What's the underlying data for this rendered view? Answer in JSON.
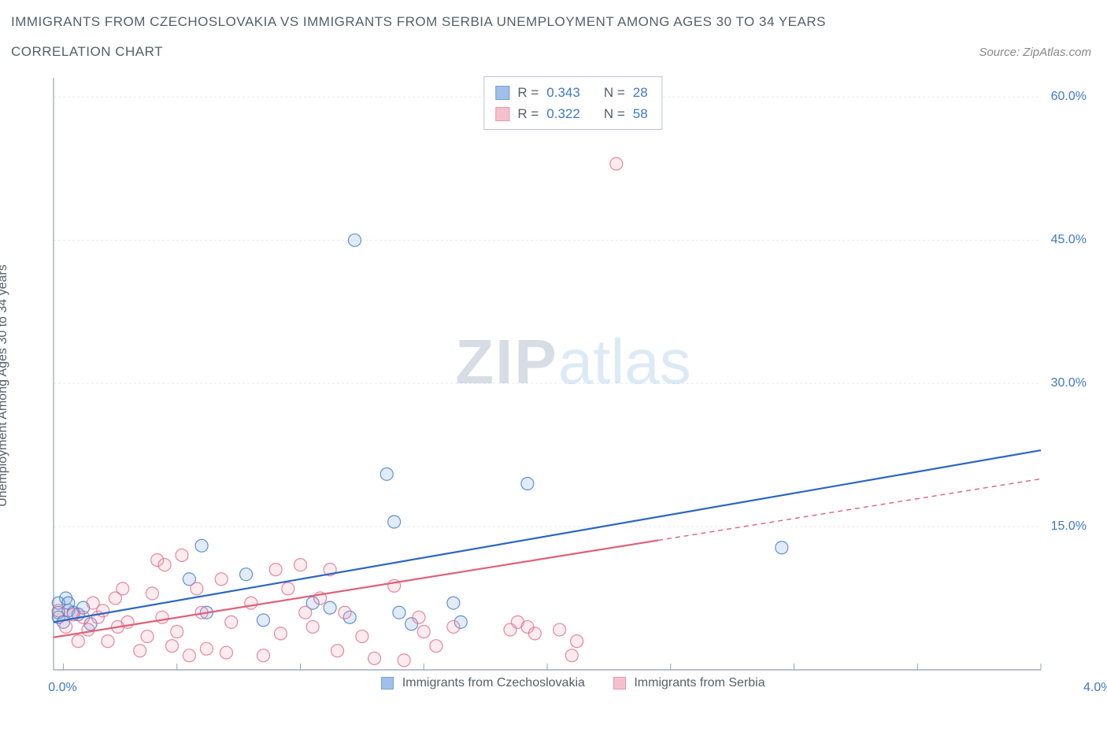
{
  "title": "IMMIGRANTS FROM CZECHOSLOVAKIA VS IMMIGRANTS FROM SERBIA UNEMPLOYMENT AMONG AGES 30 TO 34 YEARS",
  "subtitle": "CORRELATION CHART",
  "source": "Source: ZipAtlas.com",
  "y_axis_label": "Unemployment Among Ages 30 to 34 years",
  "watermark_a": "ZIP",
  "watermark_b": "atlas",
  "chart": {
    "type": "scatter",
    "xlim": [
      0.0,
      4.0
    ],
    "ylim": [
      0.0,
      62.0
    ],
    "x_tick_positions_pct": [
      1,
      12.5,
      25,
      37.5,
      50,
      62.5,
      75,
      87.5,
      100
    ],
    "x_tick_labels": {
      "0": "0.0%",
      "8": "4.0%"
    },
    "y_ticks": [
      15.0,
      30.0,
      45.0,
      60.0
    ],
    "y_tick_labels": [
      "15.0%",
      "30.0%",
      "45.0%",
      "60.0%"
    ],
    "background_color": "#ffffff",
    "grid_color": "#e5e9f0",
    "axis_color": "#96a2b4",
    "tick_label_color": "#4178c7",
    "marker_radius": 8,
    "marker_fill_opacity": 0.22,
    "marker_stroke_opacity": 0.8,
    "trend_line_width": 2.2,
    "series": [
      {
        "name": "Immigrants from Czechoslovakia",
        "color_stroke": "#3b78c8",
        "color_fill": "#7aa6e0",
        "trend_color": "#2b66c4",
        "trend": {
          "x1": 0.0,
          "y1": 5.0,
          "x2": 4.0,
          "y2": 23.0
        },
        "trend_dash_from_x": null,
        "points": [
          [
            0.02,
            6.0
          ],
          [
            0.02,
            5.5
          ],
          [
            0.05,
            7.5
          ],
          [
            0.06,
            6.2
          ],
          [
            0.08,
            6.0
          ],
          [
            0.1,
            5.8
          ],
          [
            0.12,
            6.5
          ],
          [
            0.15,
            4.8
          ],
          [
            0.55,
            9.5
          ],
          [
            0.6,
            13.0
          ],
          [
            0.62,
            6.0
          ],
          [
            0.78,
            10.0
          ],
          [
            1.05,
            7.0
          ],
          [
            1.12,
            6.5
          ],
          [
            1.2,
            5.5
          ],
          [
            1.22,
            45.0
          ],
          [
            1.38,
            15.5
          ],
          [
            1.4,
            6.0
          ],
          [
            1.45,
            4.8
          ],
          [
            1.62,
            7.0
          ],
          [
            1.65,
            5.0
          ],
          [
            1.92,
            19.5
          ],
          [
            1.35,
            20.5
          ],
          [
            2.95,
            12.8
          ],
          [
            0.02,
            7.0
          ],
          [
            0.04,
            5.0
          ],
          [
            0.06,
            7.0
          ],
          [
            0.85,
            5.2
          ]
        ]
      },
      {
        "name": "Immigrants from Serbia",
        "color_stroke": "#e06a8a",
        "color_fill": "#f2a6b8",
        "trend_color": "#e06078",
        "trend": {
          "x1": 0.0,
          "y1": 3.4,
          "x2": 4.0,
          "y2": 20.0
        },
        "trend_dash_from_x": 2.45,
        "points": [
          [
            0.02,
            6.2
          ],
          [
            0.05,
            4.5
          ],
          [
            0.08,
            5.8
          ],
          [
            0.1,
            3.0
          ],
          [
            0.12,
            5.5
          ],
          [
            0.14,
            4.2
          ],
          [
            0.16,
            7.0
          ],
          [
            0.18,
            5.5
          ],
          [
            0.2,
            6.2
          ],
          [
            0.22,
            3.0
          ],
          [
            0.25,
            7.5
          ],
          [
            0.3,
            5.0
          ],
          [
            0.35,
            2.0
          ],
          [
            0.4,
            8.0
          ],
          [
            0.42,
            11.5
          ],
          [
            0.45,
            11.0
          ],
          [
            0.48,
            2.5
          ],
          [
            0.5,
            4.0
          ],
          [
            0.55,
            1.5
          ],
          [
            0.58,
            8.5
          ],
          [
            0.6,
            6.0
          ],
          [
            0.62,
            2.2
          ],
          [
            0.68,
            9.5
          ],
          [
            0.7,
            1.8
          ],
          [
            0.72,
            5.0
          ],
          [
            0.8,
            7.0
          ],
          [
            0.85,
            1.5
          ],
          [
            0.9,
            10.5
          ],
          [
            0.92,
            3.8
          ],
          [
            0.95,
            8.5
          ],
          [
            1.0,
            11.0
          ],
          [
            1.02,
            6.0
          ],
          [
            1.05,
            4.5
          ],
          [
            1.08,
            7.5
          ],
          [
            1.12,
            10.5
          ],
          [
            1.15,
            2.0
          ],
          [
            1.18,
            6.0
          ],
          [
            1.25,
            3.5
          ],
          [
            1.3,
            1.2
          ],
          [
            1.38,
            8.8
          ],
          [
            1.42,
            1.0
          ],
          [
            1.48,
            5.5
          ],
          [
            1.5,
            4.0
          ],
          [
            1.55,
            2.5
          ],
          [
            1.62,
            4.5
          ],
          [
            1.85,
            4.2
          ],
          [
            1.88,
            5.0
          ],
          [
            1.92,
            4.5
          ],
          [
            1.95,
            3.8
          ],
          [
            2.05,
            4.2
          ],
          [
            2.1,
            1.5
          ],
          [
            2.12,
            3.0
          ],
          [
            2.28,
            53.0
          ],
          [
            0.52,
            12.0
          ],
          [
            0.38,
            3.5
          ],
          [
            0.28,
            8.5
          ],
          [
            0.26,
            4.5
          ],
          [
            0.44,
            5.5
          ]
        ]
      }
    ],
    "stats_box": [
      {
        "series_index": 0,
        "R": "0.343",
        "N": "28"
      },
      {
        "series_index": 1,
        "R": "0.322",
        "N": "58"
      }
    ],
    "stats_labels": {
      "R": "R =",
      "N": "N ="
    }
  }
}
